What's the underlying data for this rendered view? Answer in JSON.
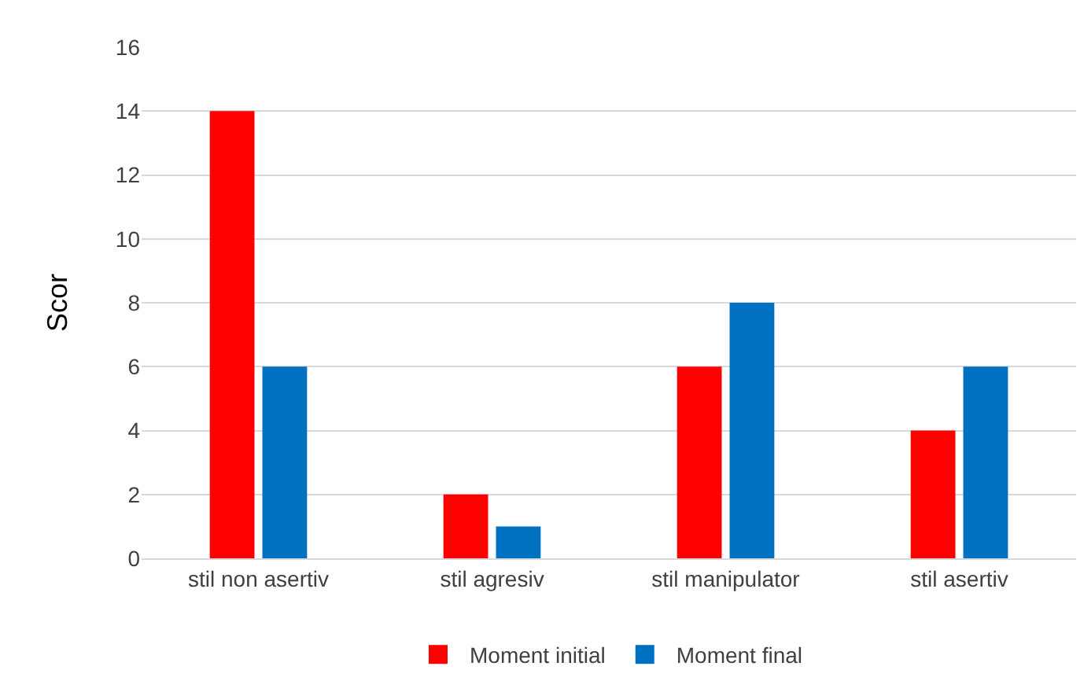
{
  "chart_data": {
    "type": "bar",
    "ylabel": "Scor",
    "categories": [
      "stil non asertiv",
      "stil agresiv",
      "stil manipulator",
      "stil asertiv"
    ],
    "series": [
      {
        "name": "Moment initial",
        "color": "#ff0000",
        "values": [
          14,
          2,
          6,
          4
        ]
      },
      {
        "name": "Moment final",
        "color": "#0070c0",
        "values": [
          6,
          1,
          8,
          6
        ]
      }
    ],
    "ylim": [
      0,
      16
    ],
    "yticks": [
      0,
      2,
      4,
      6,
      8,
      10,
      12,
      14,
      16
    ],
    "grid": "y",
    "legend": "bottom"
  }
}
